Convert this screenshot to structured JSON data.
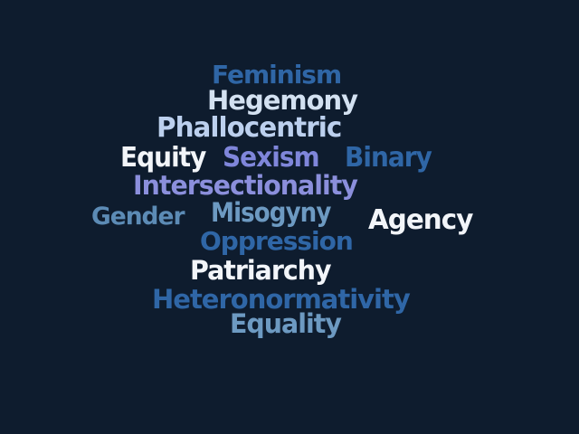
{
  "colors": {
    "background": "#0e1c2e"
  },
  "words": [
    {
      "text": "Feminism",
      "color": "#2f66a6"
    },
    {
      "text": "Hegemony",
      "color": "#d3e1f1"
    },
    {
      "text": "Phallocentric",
      "color": "#bcd0ee"
    },
    {
      "text": "Equity",
      "color": "#f2f5f9"
    },
    {
      "text": "Sexism",
      "color": "#7f86da"
    },
    {
      "text": "Binary",
      "color": "#2f66a6"
    },
    {
      "text": "Intersectionality",
      "color": "#8b8fdc"
    },
    {
      "text": "Gender",
      "color": "#5c8bb5"
    },
    {
      "text": "Misogyny",
      "color": "#6d9ac2"
    },
    {
      "text": "Agency",
      "color": "#f2f5f9"
    },
    {
      "text": "Oppression",
      "color": "#2f66a6"
    },
    {
      "text": "Patriarchy",
      "color": "#f2f5f9"
    },
    {
      "text": "Heteronormativity",
      "color": "#2f66a6"
    },
    {
      "text": "Equality",
      "color": "#6d9ac2"
    }
  ]
}
